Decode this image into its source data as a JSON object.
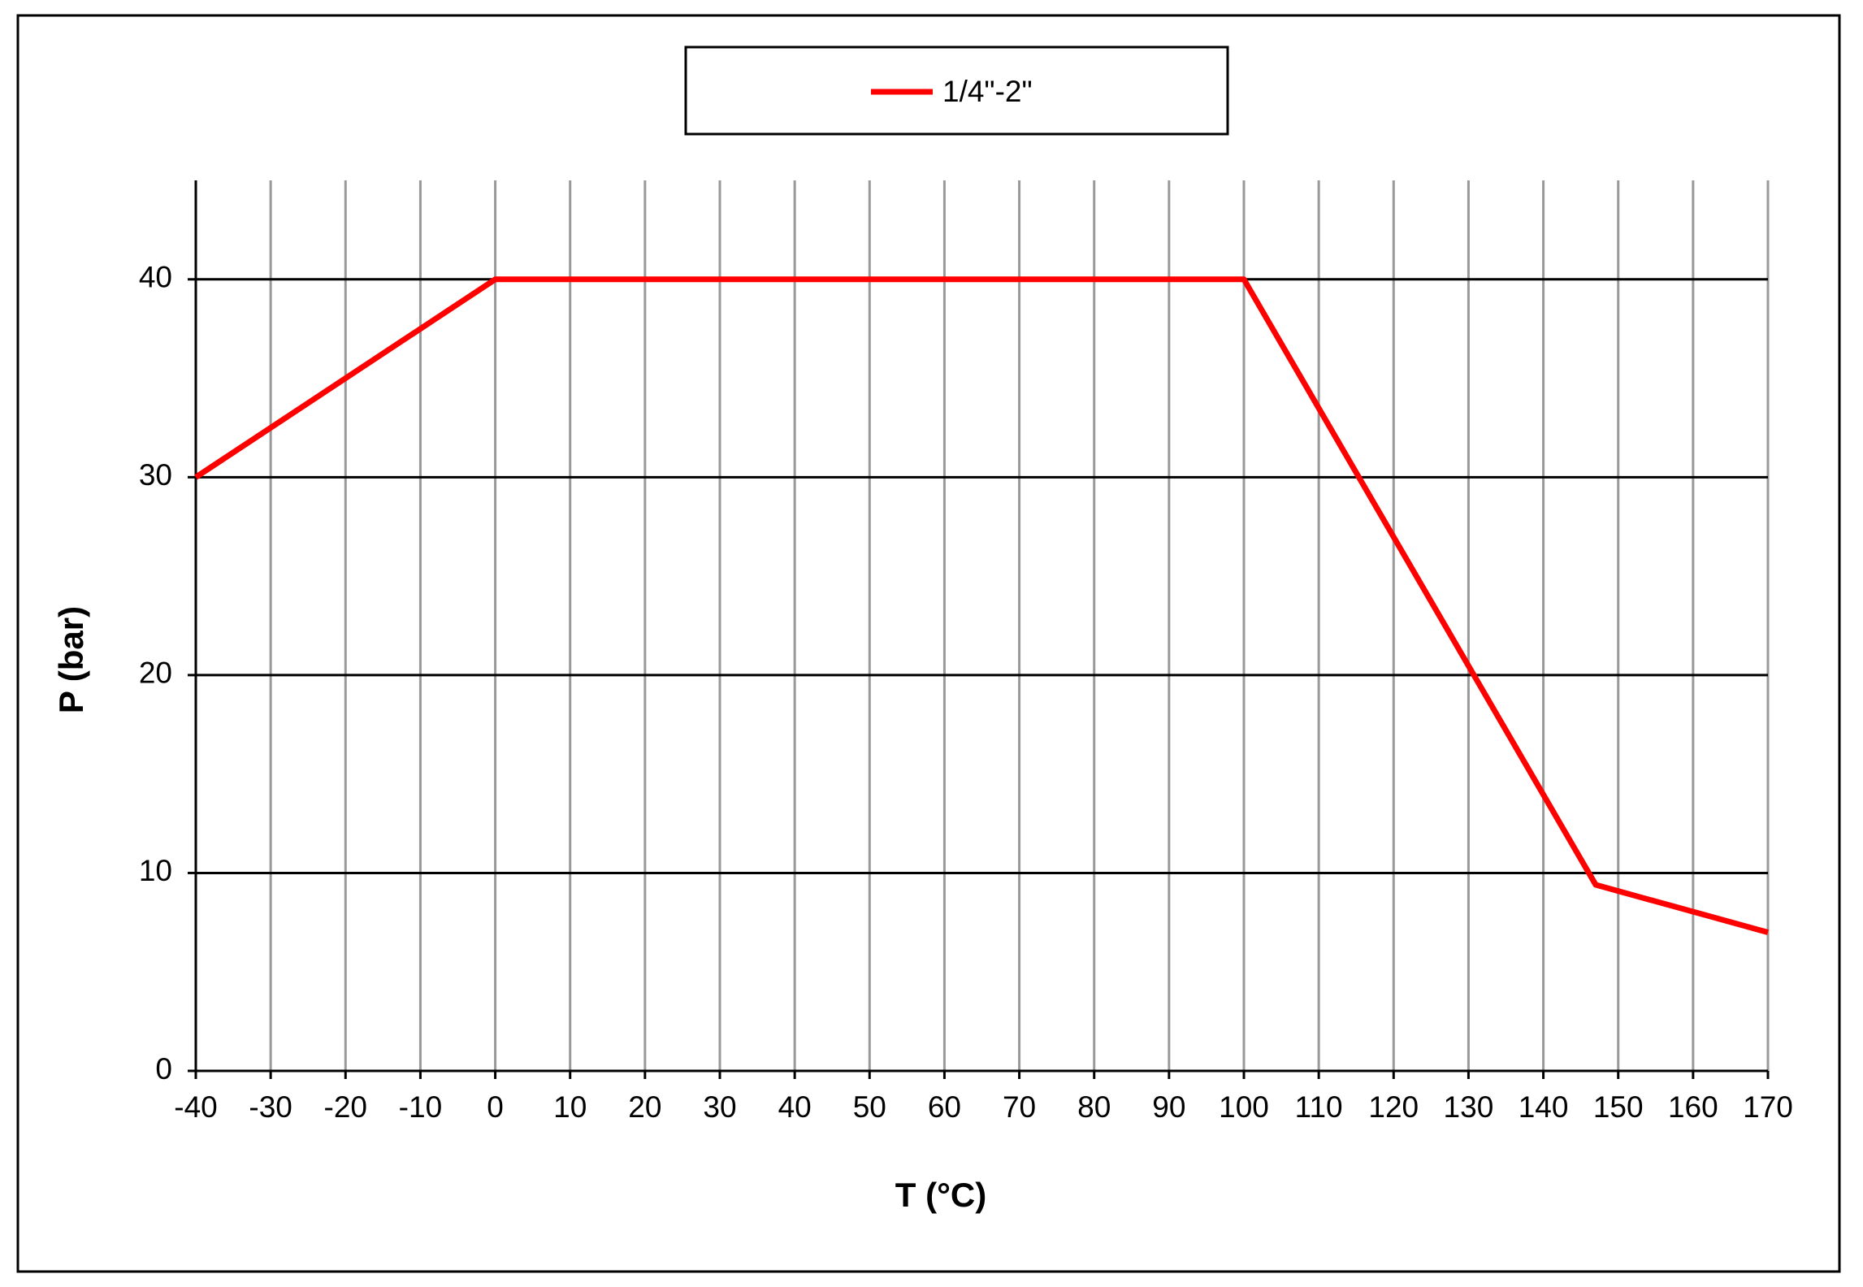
{
  "chart_data": {
    "type": "line",
    "xlabel": "T (°C)",
    "ylabel": "P (bar)",
    "x": [
      -40,
      0,
      100,
      147,
      170
    ],
    "series": [
      {
        "name": "1/4\"-2\"",
        "color": "#ff0000",
        "values": [
          30,
          40,
          40,
          9.4,
          7
        ]
      }
    ],
    "xlim": [
      -40,
      170
    ],
    "ylim": [
      0,
      45
    ],
    "xticks": [
      -40,
      -30,
      -20,
      -10,
      0,
      10,
      20,
      30,
      40,
      50,
      60,
      70,
      80,
      90,
      100,
      110,
      120,
      130,
      140,
      150,
      160,
      170
    ],
    "yticks": [
      0,
      10,
      20,
      30,
      40
    ],
    "grid": true,
    "legend": "top"
  }
}
